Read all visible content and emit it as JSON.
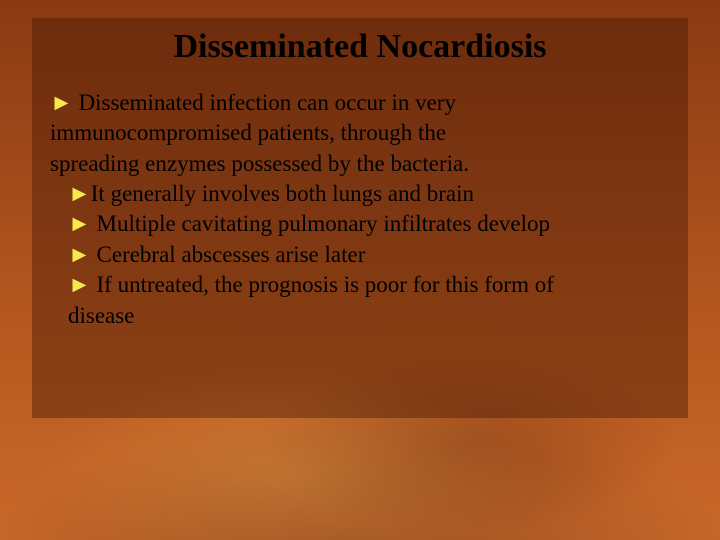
{
  "slide": {
    "title": "Disseminated Nocardiosis",
    "title_fontsize": 34,
    "body_fontsize": 23,
    "arrow_glyph": "►",
    "arrow_color": "#f6e94a",
    "panel_bg_color": "rgba(70,25,5,0.42)",
    "background_gradient": [
      "#8a3a12",
      "#a0491a",
      "#b6581f",
      "#c9682a"
    ],
    "lines": [
      {
        "indent": false,
        "bullet": true,
        "text": " Disseminated infection can occur in very"
      },
      {
        "indent": false,
        "bullet": false,
        "text": "immunocompromised patients, through the"
      },
      {
        "indent": false,
        "bullet": false,
        "text": "spreading enzymes possessed by the bacteria."
      },
      {
        "indent": true,
        "bullet": true,
        "text": "It generally involves both lungs and brain"
      },
      {
        "indent": true,
        "bullet": true,
        "text": " Multiple cavitating pulmonary infiltrates develop"
      },
      {
        "indent": true,
        "bullet": true,
        "text": " Cerebral abscesses arise later"
      },
      {
        "indent": true,
        "bullet": true,
        "text": " If untreated, the prognosis is poor for this form of"
      },
      {
        "indent": true,
        "bullet": false,
        "text": "disease"
      }
    ]
  }
}
